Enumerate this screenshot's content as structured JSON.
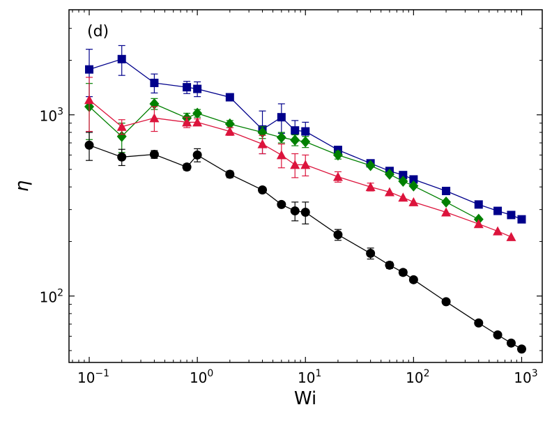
{
  "chart_data": {
    "type": "scatter",
    "panel_label": "(d)",
    "xlabel": "Wi",
    "ylabel": "η",
    "xscale": "log",
    "yscale": "log",
    "xlim": [
      0.065,
      1550
    ],
    "ylim": [
      43,
      3800
    ],
    "x_ticks": [
      {
        "value": 0.1,
        "base": "10",
        "exp": "−1"
      },
      {
        "value": 1,
        "base": "10",
        "exp": "0"
      },
      {
        "value": 10,
        "base": "10",
        "exp": "1"
      },
      {
        "value": 100,
        "base": "10",
        "exp": "2"
      },
      {
        "value": 1000,
        "base": "10",
        "exp": "3"
      }
    ],
    "y_ticks": [
      {
        "value": 100,
        "base": "10",
        "exp": "2"
      },
      {
        "value": 1000,
        "base": "10",
        "exp": "3"
      }
    ],
    "grid": false,
    "series": [
      {
        "color": "#00008b",
        "marker": "square",
        "x": [
          0.1,
          0.2,
          0.4,
          0.8,
          1,
          2,
          4,
          6,
          8,
          10,
          20,
          40,
          60,
          80,
          100,
          200,
          400,
          600,
          800,
          1000
        ],
        "y": [
          1780,
          2030,
          1500,
          1420,
          1390,
          1250,
          830,
          970,
          820,
          810,
          640,
          540,
          490,
          465,
          440,
          380,
          320,
          295,
          280,
          265
        ],
        "err": [
          520,
          380,
          180,
          110,
          130,
          0,
          220,
          180,
          110,
          100,
          30,
          0,
          0,
          0,
          0,
          0,
          0,
          0,
          0,
          0
        ]
      },
      {
        "color": "#008000",
        "marker": "diamond",
        "x": [
          0.1,
          0.2,
          0.4,
          0.8,
          1,
          2,
          4,
          6,
          8,
          10,
          20,
          40,
          60,
          80,
          100,
          200,
          400
        ],
        "y": [
          1110,
          760,
          1150,
          960,
          1020,
          890,
          800,
          750,
          725,
          710,
          600,
          525,
          470,
          430,
          405,
          330,
          265
        ],
        "err": [
          380,
          140,
          80,
          60,
          50,
          40,
          60,
          50,
          50,
          50,
          30,
          0,
          0,
          0,
          0,
          0,
          0
        ]
      },
      {
        "color": "#dc143c",
        "marker": "triangle",
        "x": [
          0.1,
          0.2,
          0.4,
          0.8,
          1,
          2,
          4,
          6,
          8,
          10,
          20,
          40,
          60,
          80,
          100,
          200,
          400,
          600,
          800
        ],
        "y": [
          1210,
          860,
          960,
          910,
          910,
          810,
          690,
          600,
          530,
          530,
          455,
          400,
          375,
          350,
          330,
          290,
          250,
          228,
          212
        ],
        "err": [
          400,
          80,
          150,
          60,
          40,
          40,
          80,
          90,
          80,
          70,
          30,
          20,
          0,
          0,
          0,
          0,
          0,
          0,
          0
        ]
      },
      {
        "color": "#000000",
        "marker": "circle",
        "x": [
          0.1,
          0.2,
          0.4,
          0.8,
          1,
          2,
          4,
          6,
          8,
          10,
          20,
          40,
          60,
          80,
          100,
          200,
          400,
          600,
          800,
          1000
        ],
        "y": [
          680,
          585,
          605,
          515,
          600,
          470,
          385,
          320,
          295,
          290,
          218,
          172,
          148,
          135,
          123,
          93,
          71,
          61,
          55,
          51
        ],
        "err": [
          120,
          60,
          30,
          20,
          50,
          20,
          10,
          10,
          35,
          40,
          15,
          12,
          6,
          5,
          4,
          0,
          0,
          0,
          0,
          0
        ]
      }
    ]
  }
}
